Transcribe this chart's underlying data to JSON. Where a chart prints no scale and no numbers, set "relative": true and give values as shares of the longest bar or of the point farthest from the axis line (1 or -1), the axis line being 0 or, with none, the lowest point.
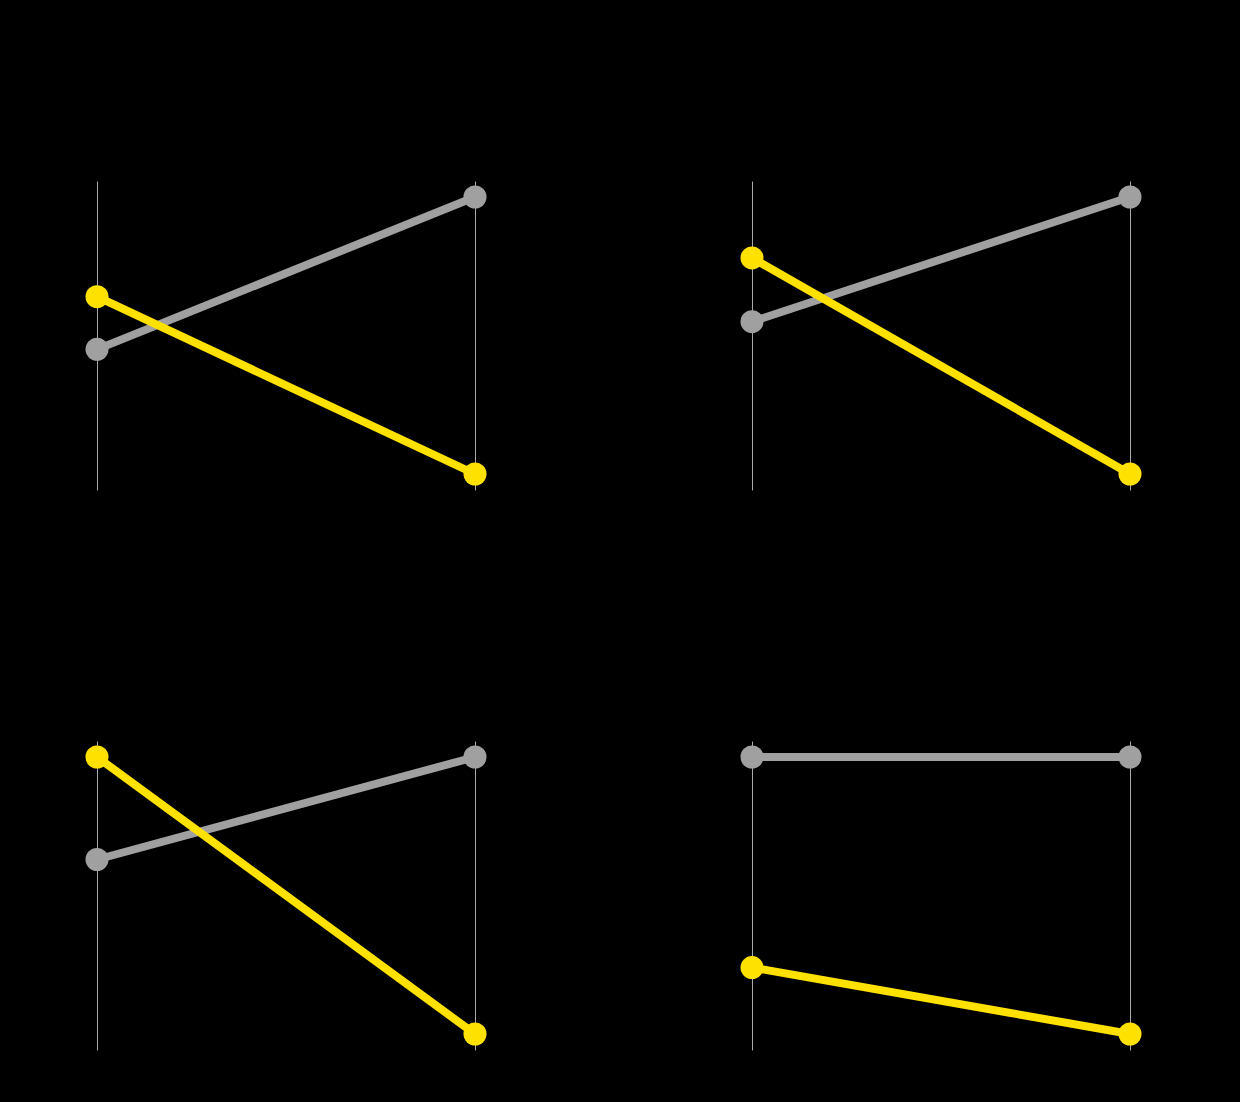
{
  "chart_data": [
    {
      "type": "line",
      "relative": true,
      "categories": [
        null,
        null
      ],
      "series": [
        {
          "color": "#a0a0a0",
          "values": [
            0.45,
            1
          ]
        },
        {
          "color": "#ffe100",
          "values": [
            0.64,
            0
          ]
        }
      ],
      "marker": "circle",
      "grid": "x"
    },
    {
      "type": "line",
      "relative": true,
      "categories": [
        null,
        null
      ],
      "series": [
        {
          "color": "#a0a0a0",
          "values": [
            0.55,
            1
          ]
        },
        {
          "color": "#ffe100",
          "values": [
            0.78,
            0
          ]
        }
      ],
      "marker": "circle",
      "grid": "x"
    },
    {
      "type": "line",
      "relative": true,
      "categories": [
        null,
        null
      ],
      "series": [
        {
          "color": "#a0a0a0",
          "values": [
            0.63,
            1
          ]
        },
        {
          "color": "#ffe100",
          "values": [
            1,
            0
          ]
        }
      ],
      "marker": "circle",
      "grid": "x"
    },
    {
      "type": "line",
      "relative": true,
      "categories": [
        null,
        null
      ],
      "series": [
        {
          "color": "#a0a0a0",
          "values": [
            1,
            1
          ]
        },
        {
          "color": "#ffe100",
          "values": [
            0.24,
            0
          ]
        }
      ],
      "marker": "circle",
      "grid": "x"
    }
  ]
}
